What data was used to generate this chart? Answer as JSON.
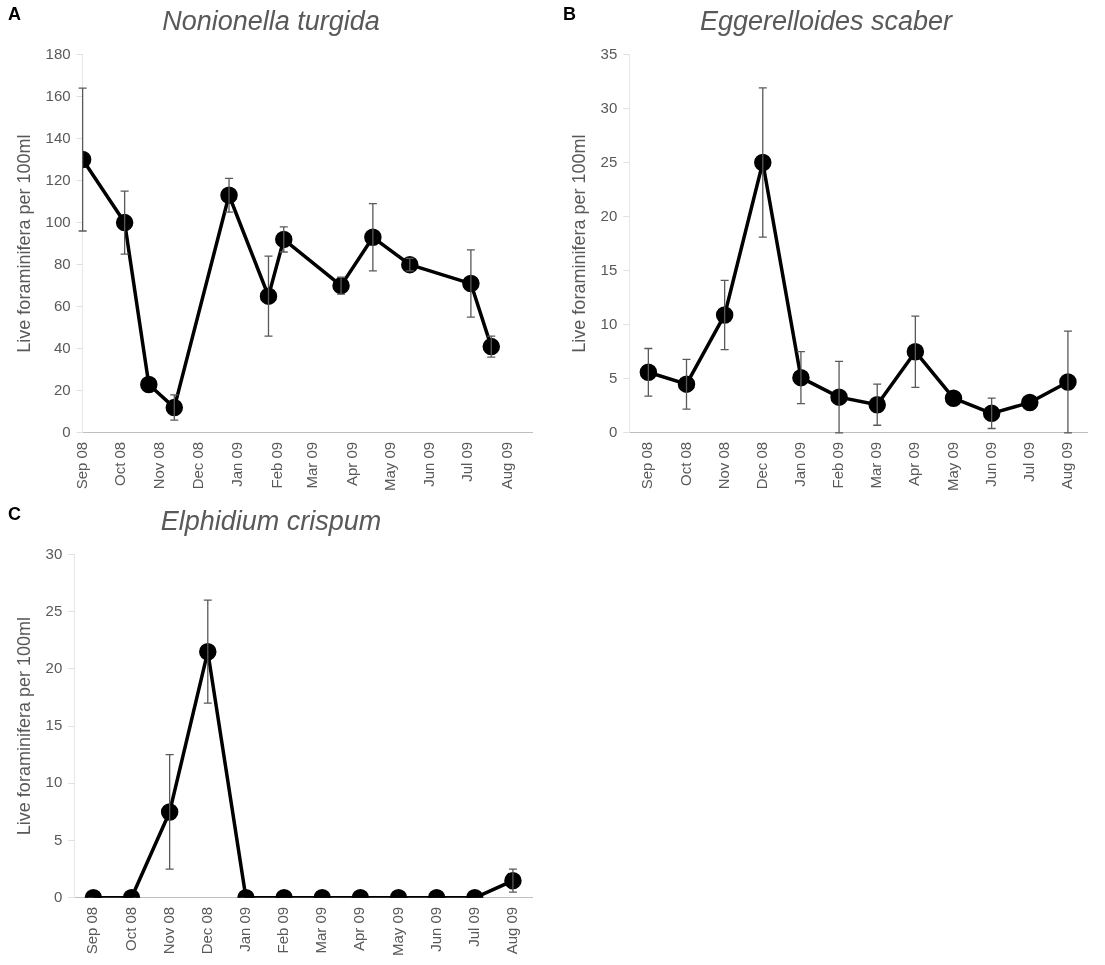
{
  "chart_data": [
    {
      "type": "line",
      "title": "Nonionella turgida",
      "ylabel": "Live foraminifera per 100ml",
      "annotations": [
        "A"
      ],
      "marker": "circle",
      "line_style": "solid",
      "x": [
        "2008-09-01",
        "2008-10-04",
        "2008-10-23",
        "2008-11-12",
        "2008-12-25",
        "2009-01-25",
        "2009-02-06",
        "2009-03-23",
        "2009-04-17",
        "2009-05-16",
        "2009-07-03",
        "2009-07-19"
      ],
      "series": [
        {
          "color": "#000000",
          "values": [
            130,
            100,
            23,
            12,
            113,
            65,
            92,
            70,
            93,
            80,
            71,
            41
          ],
          "errors": [
            34,
            15,
            null,
            6,
            8,
            19,
            6,
            4,
            16,
            3,
            16,
            5
          ]
        }
      ],
      "xlim": [
        "2008-09-01",
        "2009-08-20"
      ],
      "xticks": [
        {
          "value": "2008-09-01",
          "label": "Sep 08"
        },
        {
          "value": "2008-10-01",
          "label": "Oct 08"
        },
        {
          "value": "2008-11-01",
          "label": "Nov 08"
        },
        {
          "value": "2008-12-01",
          "label": "Dec 08"
        },
        {
          "value": "2009-01-01",
          "label": "Jan 09"
        },
        {
          "value": "2009-02-01",
          "label": "Feb 09"
        },
        {
          "value": "2009-03-01",
          "label": "Mar 09"
        },
        {
          "value": "2009-04-01",
          "label": "Apr 09"
        },
        {
          "value": "2009-05-01",
          "label": "May 09"
        },
        {
          "value": "2009-06-01",
          "label": "Jun 09"
        },
        {
          "value": "2009-07-01",
          "label": "Jul 09"
        },
        {
          "value": "2009-08-01",
          "label": "Aug 09"
        }
      ],
      "ylim": [
        0,
        180
      ],
      "yticks": [
        0,
        20,
        40,
        60,
        80,
        100,
        120,
        140,
        160,
        180
      ]
    },
    {
      "type": "line",
      "title": "Eggerelloides scaber",
      "ylabel": "Live foraminifera per 100ml",
      "annotations": [
        "B"
      ],
      "marker": "circle",
      "line_style": "solid",
      "categories": [
        "Sep 08",
        "Oct 08",
        "Nov 08",
        "Dec 08",
        "Jan 09",
        "Feb 09",
        "Mar 09",
        "Apr 09",
        "May 09",
        "Jun 09",
        "Jul 09",
        "Aug 09"
      ],
      "series": [
        {
          "color": "#000000",
          "values": [
            5.6,
            4.5,
            10.9,
            25,
            5.1,
            3.3,
            2.6,
            7.5,
            3.2,
            1.8,
            2.8,
            4.7
          ],
          "errors": [
            2.2,
            2.3,
            3.2,
            6.9,
            2.4,
            3.3,
            1.9,
            3.3,
            null,
            1.4,
            null,
            4.7
          ]
        }
      ],
      "ylim": [
        0,
        35
      ],
      "yticks": [
        0,
        5,
        10,
        15,
        20,
        25,
        30,
        35
      ]
    },
    {
      "type": "line",
      "title": "Elphidium crispum",
      "ylabel": "Live foraminifera per 100ml",
      "annotations": [
        "C"
      ],
      "marker": "circle",
      "line_style": "solid",
      "categories": [
        "Sep 08",
        "Oct 08",
        "Nov 08",
        "Dec 08",
        "Jan 09",
        "Feb 09",
        "Mar 09",
        "Apr 09",
        "May 09",
        "Jun 09",
        "Jul 09",
        "Aug 09"
      ],
      "series": [
        {
          "color": "#000000",
          "values": [
            0,
            0,
            7.5,
            21.5,
            0,
            0,
            0,
            0,
            0,
            0,
            0,
            1.5
          ],
          "errors": [
            null,
            null,
            5,
            4.5,
            null,
            null,
            null,
            null,
            null,
            null,
            null,
            1
          ]
        }
      ],
      "ylim": [
        0,
        30
      ],
      "yticks": [
        0,
        5,
        10,
        15,
        20,
        25,
        30
      ]
    }
  ]
}
